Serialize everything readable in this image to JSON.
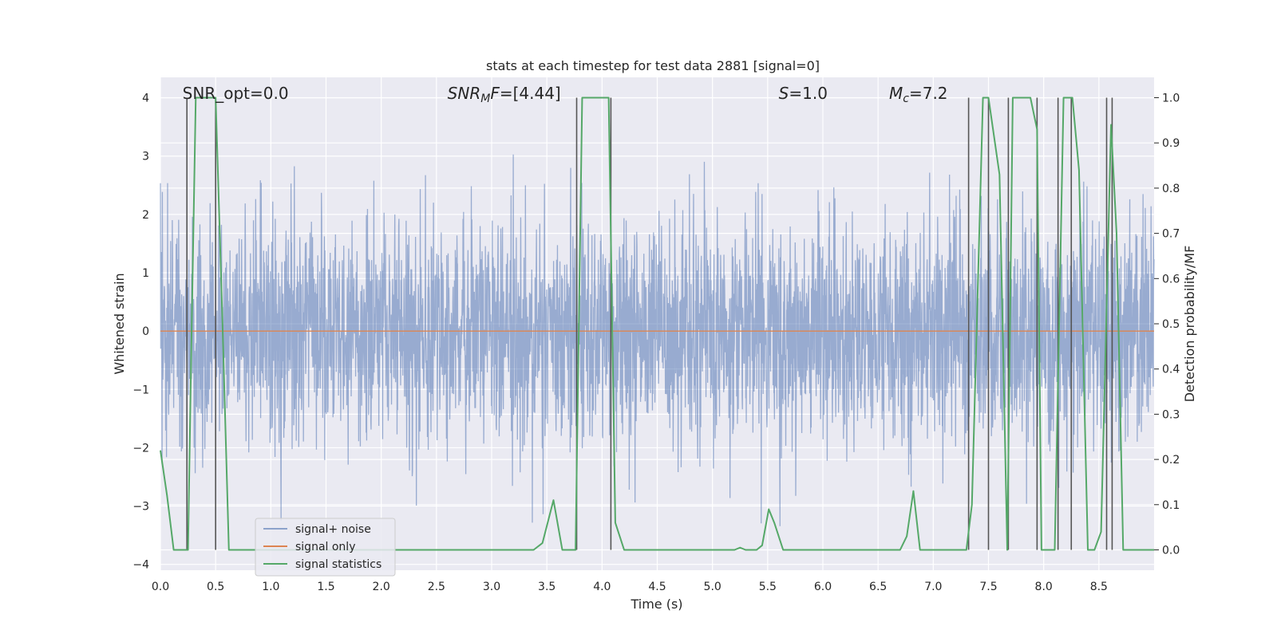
{
  "chart_data": {
    "type": "line",
    "title": "stats at each timestep for test data 2881 [signal=0]",
    "xlabel": "Time (s)",
    "ylabel": "Whitened strain",
    "y2label": "Detection probability/MF",
    "xlim": [
      0,
      9.0
    ],
    "ylim": [
      -4.1,
      4.35
    ],
    "y2lim": [
      -0.045,
      1.045
    ],
    "xticks": [
      0.0,
      0.5,
      1.0,
      1.5,
      2.0,
      2.5,
      3.0,
      3.5,
      4.0,
      4.5,
      5.0,
      5.5,
      6.0,
      6.5,
      7.0,
      7.5,
      8.0,
      8.5
    ],
    "xtick_labels": [
      "0.0",
      "0.5",
      "1.0",
      "1.5",
      "2.0",
      "2.5",
      "3.0",
      "3.5",
      "4.0",
      "4.5",
      "5.0",
      "5.5",
      "6.0",
      "6.5",
      "7.0",
      "7.5",
      "8.0",
      "8.5"
    ],
    "yticks": [
      -4,
      -3,
      -2,
      -1,
      0,
      1,
      2,
      3,
      4
    ],
    "ytick_labels": [
      "−4",
      "−3",
      "−2",
      "−1",
      "0",
      "1",
      "2",
      "3",
      "4"
    ],
    "y2ticks": [
      0.0,
      0.1,
      0.2,
      0.3,
      0.4,
      0.5,
      0.6,
      0.7,
      0.8,
      0.9,
      1.0
    ],
    "y2tick_labels": [
      "0.0",
      "0.1",
      "0.2",
      "0.3",
      "0.4",
      "0.5",
      "0.6",
      "0.7",
      "0.8",
      "0.9",
      "1.0"
    ],
    "grid": true,
    "legend_position": "lower-left",
    "annotations": [
      {
        "label": "SNR_opt=0.0",
        "x": 0.2
      },
      {
        "label": "SNR_MF=[4.44]",
        "x": 2.6
      },
      {
        "label": "S=1.0",
        "x": 5.6
      },
      {
        "label": "M_c=7.2",
        "x": 6.6
      }
    ],
    "series": [
      {
        "name": "signal+ noise",
        "color": "#4c72b0",
        "axis": "left",
        "description_range": [
          -3.7,
          4.0
        ],
        "typical_band": [
          -1.4,
          1.4
        ]
      },
      {
        "name": "signal only",
        "color": "#dd8452",
        "axis": "left",
        "x": [
          0.0,
          9.0
        ],
        "y": [
          0.0,
          0.0
        ]
      },
      {
        "name": "signal statistics",
        "color": "#55a868",
        "axis": "right",
        "x": [
          0.0,
          0.06,
          0.12,
          0.25,
          0.28,
          0.32,
          0.42,
          0.5,
          0.56,
          0.62,
          0.75,
          3.38,
          3.46,
          3.56,
          3.64,
          3.7,
          3.76,
          3.82,
          4.06,
          4.12,
          4.2,
          4.35,
          4.5,
          5.2,
          5.25,
          5.3,
          5.4,
          5.45,
          5.51,
          5.56,
          5.64,
          5.7,
          5.85,
          6.0,
          6.7,
          6.76,
          6.82,
          6.88,
          6.92,
          7.1,
          7.3,
          7.35,
          7.45,
          7.5,
          7.6,
          7.67,
          7.72,
          7.78,
          7.88,
          7.94,
          7.98,
          8.04,
          8.1,
          8.18,
          8.26,
          8.32,
          8.4,
          8.46,
          8.52,
          8.61,
          8.66,
          8.72,
          8.8,
          9.0
        ],
        "y": [
          0.22,
          0.12,
          0.0,
          0.0,
          0.45,
          1.0,
          1.0,
          1.0,
          0.52,
          0.0,
          0.0,
          0.0,
          0.015,
          0.11,
          0.0,
          0.0,
          0.0,
          1.0,
          1.0,
          0.06,
          0.0,
          0.0,
          0.0,
          0.0,
          0.005,
          0.0,
          0.0,
          0.01,
          0.09,
          0.06,
          0.0,
          0.0,
          0.0,
          0.0,
          0.0,
          0.03,
          0.13,
          0.0,
          0.0,
          0.0,
          0.0,
          0.1,
          1.0,
          1.0,
          0.83,
          0.0,
          1.0,
          1.0,
          1.0,
          0.93,
          0.0,
          0.0,
          0.0,
          1.0,
          1.0,
          0.84,
          0.0,
          0.0,
          0.04,
          0.94,
          0.7,
          0.0,
          0.0,
          0.0
        ]
      }
    ],
    "vertical_markers": [
      0.24,
      0.5,
      3.77,
      4.08,
      7.32,
      7.5,
      7.68,
      7.94,
      8.13,
      8.25,
      8.57,
      8.62
    ],
    "vertical_markers_color": "#555555"
  }
}
